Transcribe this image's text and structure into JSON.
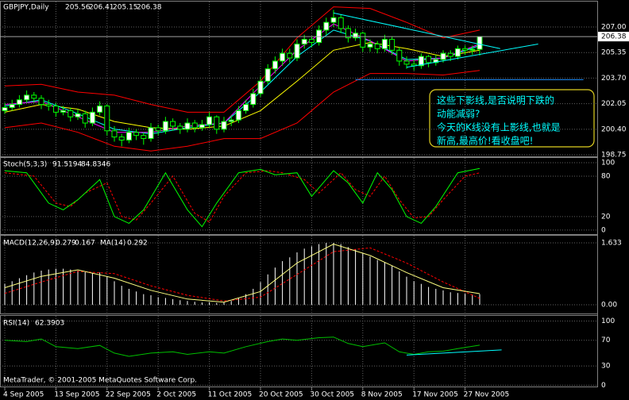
{
  "header": {
    "symbol": "GBPJPY,Daily"
  },
  "price_panel": {
    "ylim": [
      198.65,
      208.64
    ],
    "yticks": [
      {
        "value": 207,
        "label": "207.00"
      },
      {
        "value": 205.35,
        "label": "205.35"
      },
      {
        "value": 203.7,
        "label": "203.70"
      },
      {
        "value": 202.05,
        "label": "202.05"
      },
      {
        "value": 200.4,
        "label": "200.40"
      },
      {
        "value": 198.75,
        "label": "198.75"
      }
    ],
    "bars": [
      [
        201.6,
        202.1,
        201.4,
        201.8
      ],
      [
        201.8,
        202.3,
        201.6,
        202.0
      ],
      [
        202.0,
        202.6,
        201.8,
        202.3
      ],
      [
        202.3,
        202.9,
        202.1,
        202.6
      ],
      [
        202.6,
        202.8,
        202.1,
        202.4
      ],
      [
        202.4,
        202.6,
        201.7,
        202.0
      ],
      [
        202.0,
        202.3,
        201.6,
        201.9
      ],
      [
        201.9,
        202.1,
        201.2,
        201.5
      ],
      [
        201.5,
        201.9,
        201.3,
        201.6
      ],
      [
        201.6,
        201.8,
        200.9,
        201.2
      ],
      [
        201.2,
        201.7,
        201.0,
        201.4
      ],
      [
        201.4,
        201.6,
        200.5,
        200.8
      ],
      [
        200.8,
        201.8,
        200.6,
        201.5
      ],
      [
        201.5,
        202.2,
        201.3,
        201.9
      ],
      [
        201.9,
        202.0,
        200.0,
        200.3
      ],
      [
        200.3,
        200.6,
        199.6,
        199.9
      ],
      [
        199.9,
        200.1,
        199.3,
        199.7
      ],
      [
        199.7,
        200.5,
        199.5,
        200.2
      ],
      [
        200.2,
        200.4,
        199.7,
        200.0
      ],
      [
        200.0,
        200.2,
        199.4,
        199.8
      ],
      [
        199.8,
        200.8,
        199.6,
        200.5
      ],
      [
        200.5,
        200.7,
        200.0,
        200.3
      ],
      [
        200.3,
        201.2,
        200.1,
        200.9
      ],
      [
        200.9,
        201.1,
        200.3,
        200.6
      ],
      [
        200.6,
        200.8,
        200.1,
        200.4
      ],
      [
        200.4,
        201.1,
        200.2,
        200.8
      ],
      [
        200.8,
        201.0,
        200.2,
        200.5
      ],
      [
        200.5,
        201.0,
        200.3,
        200.7
      ],
      [
        200.7,
        201.5,
        200.5,
        201.2
      ],
      [
        201.2,
        201.3,
        200.1,
        200.4
      ],
      [
        200.4,
        201.2,
        200.2,
        200.9
      ],
      [
        200.9,
        201.3,
        200.6,
        201.0
      ],
      [
        201.0,
        201.9,
        200.8,
        201.6
      ],
      [
        201.6,
        202.3,
        201.4,
        202.0
      ],
      [
        202.0,
        203.0,
        201.8,
        202.7
      ],
      [
        202.7,
        203.8,
        202.5,
        203.5
      ],
      [
        203.5,
        204.6,
        203.3,
        204.3
      ],
      [
        204.3,
        205.1,
        204.0,
        204.8
      ],
      [
        204.8,
        205.6,
        204.5,
        205.3
      ],
      [
        205.3,
        205.6,
        204.7,
        205.0
      ],
      [
        205.0,
        206.2,
        204.8,
        205.9
      ],
      [
        205.9,
        206.5,
        205.6,
        206.2
      ],
      [
        206.2,
        206.4,
        205.7,
        206.0
      ],
      [
        206.0,
        207.1,
        205.8,
        206.8
      ],
      [
        206.8,
        207.6,
        206.5,
        207.3
      ],
      [
        207.3,
        208.1,
        207.0,
        207.6
      ],
      [
        207.6,
        207.8,
        206.6,
        206.9
      ],
      [
        206.9,
        207.1,
        206.0,
        206.3
      ],
      [
        206.3,
        206.9,
        206.1,
        206.6
      ],
      [
        206.6,
        206.7,
        205.4,
        205.7
      ],
      [
        205.7,
        206.2,
        205.4,
        205.9
      ],
      [
        205.9,
        206.1,
        205.3,
        205.6
      ],
      [
        205.6,
        206.5,
        205.4,
        206.2
      ],
      [
        206.2,
        206.4,
        205.2,
        205.5
      ],
      [
        205.5,
        205.7,
        204.5,
        204.8
      ],
      [
        204.8,
        205.1,
        204.3,
        204.6
      ],
      [
        204.6,
        204.9,
        204.2,
        204.5
      ],
      [
        204.5,
        205.3,
        204.3,
        205.1
      ],
      [
        205.1,
        205.2,
        204.4,
        204.7
      ],
      [
        204.7,
        205.2,
        204.5,
        204.9
      ],
      [
        204.9,
        205.5,
        204.7,
        205.3
      ],
      [
        205.3,
        205.5,
        204.8,
        205.1
      ],
      [
        205.1,
        205.8,
        204.9,
        205.6
      ],
      [
        205.6,
        205.8,
        205.2,
        205.5
      ],
      [
        205.5,
        205.8,
        205.2,
        205.56
      ],
      [
        205.56,
        206.41,
        205.15,
        206.38
      ]
    ],
    "lines": [
      {
        "color": "#ff0000",
        "x": [
          0,
          5,
          10,
          15,
          20,
          25,
          30,
          35,
          40,
          45,
          50,
          55,
          60,
          65
        ],
        "values": [
          203.2,
          203.3,
          202.8,
          202.6,
          202.0,
          201.5,
          201.5,
          203.5,
          206.3,
          208.3,
          208.2,
          207.3,
          206.3,
          206.8
        ]
      },
      {
        "color": "#ff0000",
        "x": [
          0,
          5,
          10,
          15,
          20,
          25,
          30,
          35,
          40,
          45,
          50,
          55,
          60,
          65
        ],
        "values": [
          200.5,
          200.8,
          200.2,
          199.3,
          199.0,
          199.3,
          199.8,
          199.8,
          200.8,
          202.8,
          204.0,
          204.0,
          203.9,
          204.2
        ]
      },
      {
        "color": "#ffff00",
        "x": [
          0,
          5,
          10,
          15,
          20,
          25,
          30,
          35,
          40,
          45,
          50,
          55,
          60,
          65
        ],
        "values": [
          201.5,
          202.0,
          201.7,
          200.9,
          200.5,
          200.4,
          200.6,
          201.6,
          203.5,
          205.5,
          206.0,
          205.6,
          205.1,
          205.5
        ]
      },
      {
        "color": "#00ffff",
        "x": [
          0,
          5,
          10,
          15,
          20,
          25,
          30,
          35,
          40,
          45,
          50,
          55,
          60,
          65
        ],
        "values": [
          201.9,
          202.3,
          201.4,
          200.4,
          200.1,
          200.5,
          200.8,
          202.8,
          205.1,
          206.8,
          206.1,
          204.9,
          205.0,
          205.8
        ]
      },
      {
        "color": "#ff00ff",
        "x": [
          0,
          5,
          10,
          15,
          20,
          25,
          30,
          35,
          40,
          45,
          50,
          55,
          60,
          65
        ],
        "values": [
          202.0,
          202.2,
          201.2,
          200.2,
          200.2,
          200.6,
          200.8,
          203.2,
          205.5,
          207.2,
          206.1,
          204.8,
          205.0,
          205.9
        ]
      }
    ],
    "trendlines": [
      {
        "color": "#00ffff",
        "x": [
          45,
          67.8
        ],
        "values": [
          207.9,
          205.6
        ]
      },
      {
        "color": "#00ffff",
        "x": [
          55,
          73
        ],
        "values": [
          204.4,
          205.9
        ]
      },
      {
        "color": "#1e90ff",
        "x": [
          48,
          79.2
        ],
        "values": [
          203.6,
          203.6
        ]
      }
    ],
    "annotation": [
      "这些下影线,是否说明下跌的",
      "动能减弱?",
      "今天的K线没有上影线,也就是",
      "新高,最高价!看收盘吧!"
    ]
  },
  "stoch_panel": {
    "label": "Stoch(5,3,3)",
    "ylim": [
      -6,
      107
    ],
    "yticks": [
      100,
      80,
      20,
      0
    ],
    "main": {
      "color": "#00ff00",
      "x": [
        0,
        3,
        6,
        8,
        10,
        13,
        15,
        17,
        19,
        22,
        25,
        27,
        29,
        32,
        35,
        37,
        40,
        42,
        45,
        47,
        49,
        51,
        53,
        55,
        57,
        59,
        62,
        65
      ],
      "values": [
        88,
        85,
        40,
        30,
        45,
        75,
        20,
        10,
        30,
        85,
        30,
        5,
        40,
        85,
        90,
        82,
        85,
        50,
        88,
        70,
        40,
        85,
        60,
        20,
        10,
        35,
        85,
        91.5194
      ]
    },
    "signal": {
      "color": "#ff0000",
      "x": [
        0,
        4,
        7,
        9,
        11,
        14,
        16,
        18,
        20,
        23,
        26,
        28,
        30,
        33,
        36,
        38,
        41,
        43,
        46,
        48,
        50,
        52,
        54,
        56,
        58,
        60,
        63,
        65
      ],
      "values": [
        85,
        80,
        40,
        35,
        55,
        70,
        20,
        15,
        40,
        80,
        25,
        12,
        50,
        85,
        88,
        85,
        75,
        55,
        85,
        60,
        50,
        80,
        45,
        18,
        20,
        45,
        80,
        84.8346
      ]
    }
  },
  "macd_panel": {
    "label": "MACD(12,26,9)",
    "ma_label": "MA(14)",
    "ylim": [
      -0.23,
      1.82
    ],
    "yticks": [
      1.633,
      {
        "value": 0,
        "label": "0.00"
      }
    ],
    "histogram": [
      0.55,
      0.62,
      0.7,
      0.78,
      0.85,
      0.9,
      0.93,
      0.95,
      0.95,
      0.93,
      0.9,
      0.86,
      0.84,
      0.85,
      0.75,
      0.62,
      0.5,
      0.42,
      0.35,
      0.28,
      0.25,
      0.2,
      0.18,
      0.15,
      0.12,
      0.1,
      0.08,
      0.06,
      0.07,
      0.05,
      0.07,
      0.1,
      0.18,
      0.28,
      0.42,
      0.6,
      0.8,
      0.98,
      1.15,
      1.25,
      1.38,
      1.48,
      1.54,
      1.6,
      1.63,
      1.633,
      1.6,
      1.52,
      1.46,
      1.35,
      1.27,
      1.18,
      1.12,
      1.02,
      0.88,
      0.74,
      0.62,
      0.55,
      0.47,
      0.42,
      0.38,
      0.33,
      0.31,
      0.29,
      0.27,
      0.279
    ],
    "signal": {
      "color": "#ff0000",
      "x": [
        0,
        5,
        10,
        15,
        20,
        25,
        30,
        35,
        40,
        45,
        50,
        55,
        60,
        65
      ],
      "values": [
        0.3,
        0.6,
        0.88,
        0.82,
        0.5,
        0.25,
        0.1,
        0.2,
        0.8,
        1.4,
        1.5,
        1.1,
        0.6,
        0.167
      ]
    },
    "ma": {
      "color": "#ffff80",
      "x": [
        0,
        5,
        10,
        15,
        20,
        25,
        30,
        35,
        40,
        45,
        50,
        55,
        60,
        65
      ],
      "values": [
        0.45,
        0.75,
        0.92,
        0.7,
        0.38,
        0.15,
        0.07,
        0.35,
        1.1,
        1.6,
        1.3,
        0.85,
        0.45,
        0.292
      ]
    }
  },
  "rsi_panel": {
    "label": "RSI(14)",
    "ylim": [
      -2,
      108
    ],
    "yticks": [
      100,
      70,
      30,
      0
    ],
    "line": {
      "color": "#00c000",
      "x": [
        0,
        3,
        5,
        7,
        10,
        13,
        15,
        17,
        20,
        23,
        25,
        28,
        30,
        33,
        36,
        38,
        40,
        43,
        45,
        47,
        49,
        52,
        54,
        56,
        58,
        60,
        62,
        65
      ],
      "values": [
        70,
        68,
        72,
        60,
        57,
        62,
        50,
        45,
        50,
        52,
        48,
        52,
        50,
        60,
        68,
        72,
        70,
        74,
        75,
        65,
        60,
        66,
        52,
        48,
        52,
        53,
        57,
        62.3903
      ]
    },
    "trendline": {
      "color": "#00ffff",
      "x": [
        55,
        68
      ],
      "values": [
        47,
        55
      ]
    }
  },
  "categories": [
    "4 Sep 2005",
    null,
    null,
    null,
    null,
    null,
    null,
    "13 Sep 2005",
    null,
    null,
    null,
    null,
    null,
    null,
    "22 Sep 2005",
    null,
    null,
    null,
    null,
    null,
    null,
    "2 Oct 2005",
    null,
    null,
    null,
    null,
    null,
    null,
    "11 Oct 2005",
    null,
    null,
    null,
    null,
    null,
    null,
    "20 Oct 2005",
    null,
    null,
    null,
    null,
    null,
    null,
    "30 Oct 2005",
    null,
    null,
    null,
    null,
    null,
    null,
    "8 Nov 2005",
    null,
    null,
    null,
    null,
    null,
    null,
    "17 Nov 2005",
    null,
    null,
    null,
    null,
    null,
    null,
    "27 Nov 2005",
    null,
    null
  ],
  "footer": "MetaTrader, © 2001-2005 MetaQuotes Software Corp."
}
